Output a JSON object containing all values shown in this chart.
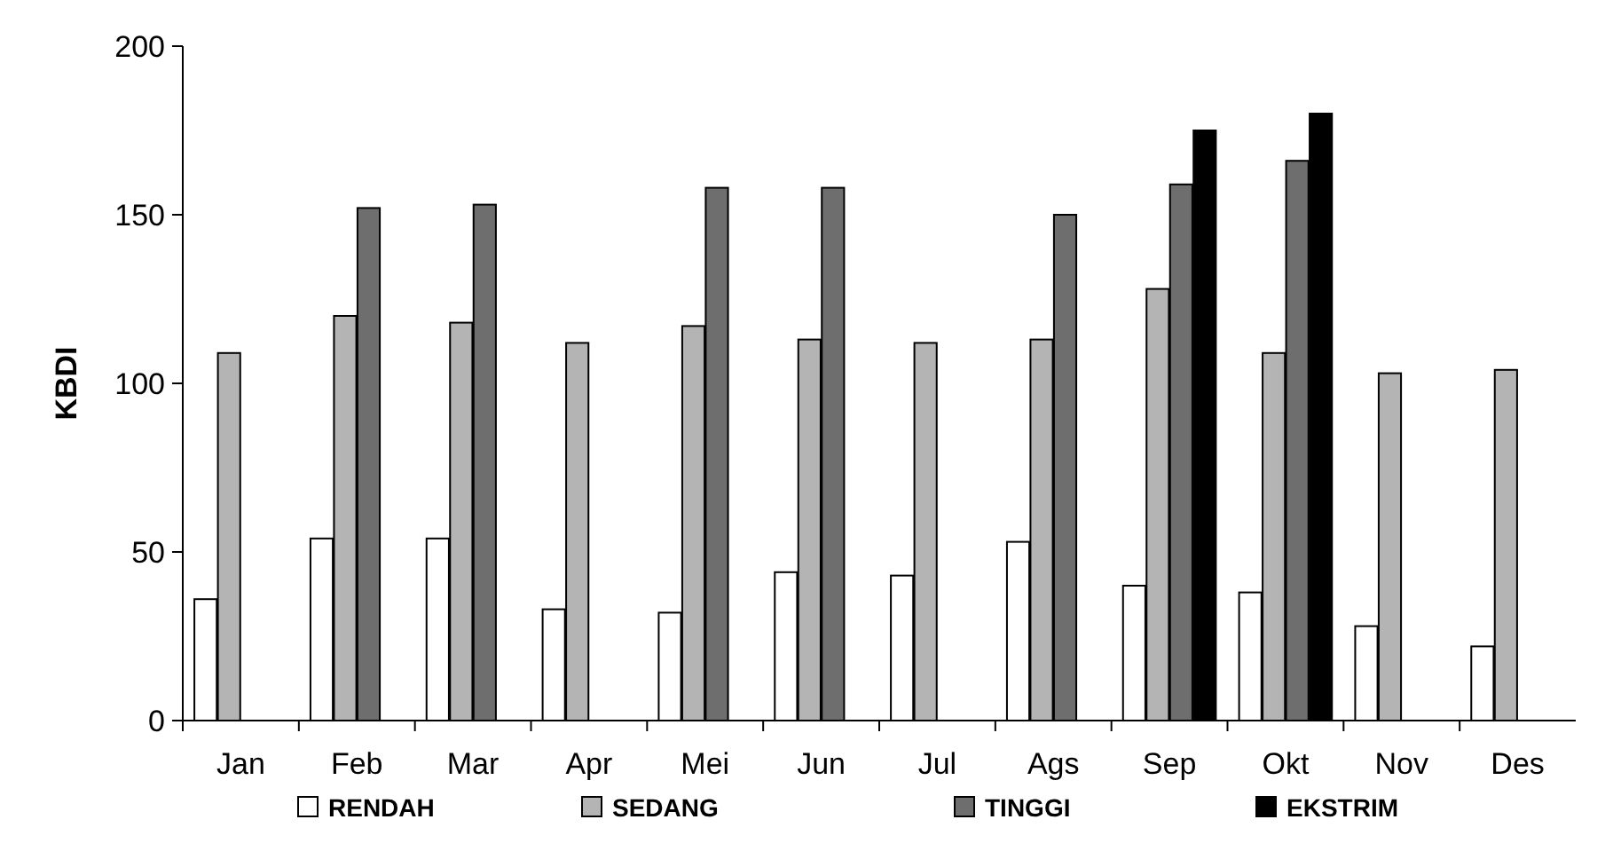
{
  "chart_data": {
    "type": "bar",
    "ylabel": "KBDI",
    "categories": [
      "Jan",
      "Feb",
      "Mar",
      "Apr",
      "Mei",
      "Jun",
      "Jul",
      "Ags",
      "Sep",
      "Okt",
      "Nov",
      "Des"
    ],
    "series": [
      {
        "name": "RENDAH",
        "color": "#ffffff",
        "values": [
          36,
          54,
          54,
          33,
          32,
          44,
          43,
          53,
          40,
          38,
          28,
          22
        ]
      },
      {
        "name": "SEDANG",
        "color": "#b4b4b4",
        "values": [
          109,
          120,
          118,
          112,
          117,
          113,
          112,
          113,
          128,
          109,
          103,
          104
        ]
      },
      {
        "name": "TINGGI",
        "color": "#6e6e6e",
        "values": [
          null,
          152,
          153,
          null,
          158,
          158,
          null,
          150,
          159,
          166,
          null,
          null
        ]
      },
      {
        "name": "EKSTRIM",
        "color": "#000000",
        "values": [
          null,
          null,
          null,
          null,
          null,
          null,
          null,
          null,
          175,
          180,
          null,
          null
        ]
      }
    ],
    "ylim": [
      0,
      200
    ],
    "yticks": [
      0,
      50,
      100,
      150,
      200
    ],
    "grid": false,
    "legend": "bottom"
  }
}
